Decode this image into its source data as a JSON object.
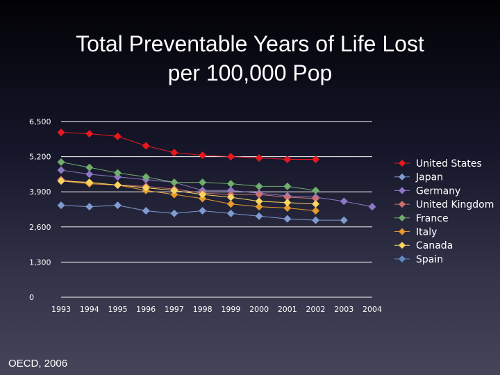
{
  "slide": {
    "title_line1": "Total Preventable Years of Life Lost",
    "title_line2": "per 100,000 Pop",
    "source": "OECD, 2006"
  },
  "chart_data": {
    "type": "line",
    "title": "Total Preventable Years of Life Lost per 100,000 Pop",
    "xlabel": "",
    "ylabel": "",
    "ylim": [
      0,
      6500
    ],
    "yticks": [
      0,
      1300,
      2600,
      3900,
      5200,
      6500
    ],
    "ytick_labels": [
      "0",
      "1,300",
      "2,600",
      "3,900",
      "5,200",
      "6,500"
    ],
    "categories": [
      "1993",
      "1994",
      "1995",
      "1996",
      "1997",
      "1998",
      "1999",
      "2000",
      "2001",
      "2002",
      "2003",
      "2004"
    ],
    "grid": true,
    "legend_position": "right",
    "series": [
      {
        "name": "United States",
        "color": "#e8191e",
        "values": [
          6100,
          6050,
          5950,
          5600,
          5350,
          5250,
          5200,
          5150,
          5100,
          5100,
          null,
          null
        ]
      },
      {
        "name": "Japan",
        "color": "#7f9bd0",
        "values": [
          3400,
          3350,
          3400,
          3200,
          3100,
          3200,
          3100,
          3000,
          2900,
          2850,
          2850,
          null
        ]
      },
      {
        "name": "Germany",
        "color": "#8c78c4",
        "values": [
          4700,
          4550,
          4450,
          4350,
          4250,
          3950,
          3950,
          3850,
          3750,
          3700,
          3550,
          3350
        ]
      },
      {
        "name": "United Kingdom",
        "color": "#cc7070",
        "values": [
          4350,
          4200,
          4150,
          4100,
          4000,
          3850,
          3800,
          3800,
          3700,
          3650,
          null,
          null
        ]
      },
      {
        "name": "France",
        "color": "#6fae6c",
        "values": [
          5000,
          4800,
          4600,
          4450,
          4250,
          4250,
          4200,
          4100,
          4100,
          3950,
          null,
          null
        ]
      },
      {
        "name": "Italy",
        "color": "#e69a2e",
        "values": [
          4300,
          4200,
          4150,
          3950,
          3800,
          3650,
          3450,
          3350,
          3300,
          3200,
          null,
          null
        ]
      },
      {
        "name": "Canada",
        "color": "#f7d55f",
        "values": [
          4300,
          4250,
          4150,
          4050,
          3950,
          3800,
          3700,
          3550,
          3500,
          3450,
          null,
          null
        ]
      },
      {
        "name": "Spain",
        "color": "#5f8ac4",
        "values": [
          null,
          null,
          null,
          null,
          null,
          null,
          null,
          null,
          null,
          null,
          null,
          null
        ]
      }
    ]
  }
}
